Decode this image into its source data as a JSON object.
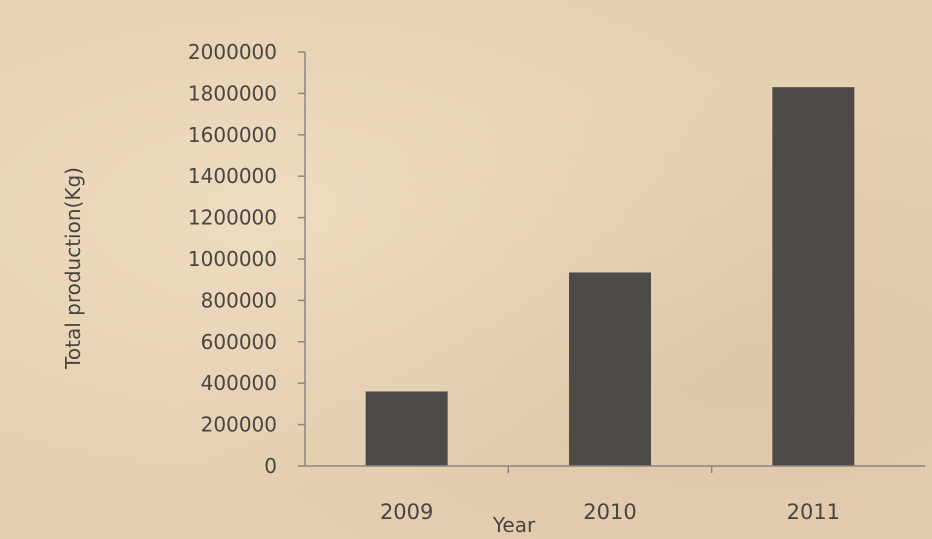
{
  "chart_data": {
    "type": "bar",
    "categories": [
      "2009",
      "2010",
      "2011"
    ],
    "values": [
      360000,
      935000,
      1830000
    ],
    "title": "",
    "xlabel": "Year",
    "ylabel": "Total production(Kg)",
    "ylim": [
      0,
      2000000
    ],
    "yticks": [
      "0",
      "200000",
      "400000",
      "600000",
      "800000",
      "1000000",
      "1200000",
      "1400000",
      "1600000",
      "1800000",
      "2000000"
    ],
    "grid": false,
    "legend": "none",
    "bar_color": "#4d4a48",
    "axis_color": "#8a8580",
    "text_color": "#4a4540",
    "background_color": "#e6d0b2"
  }
}
